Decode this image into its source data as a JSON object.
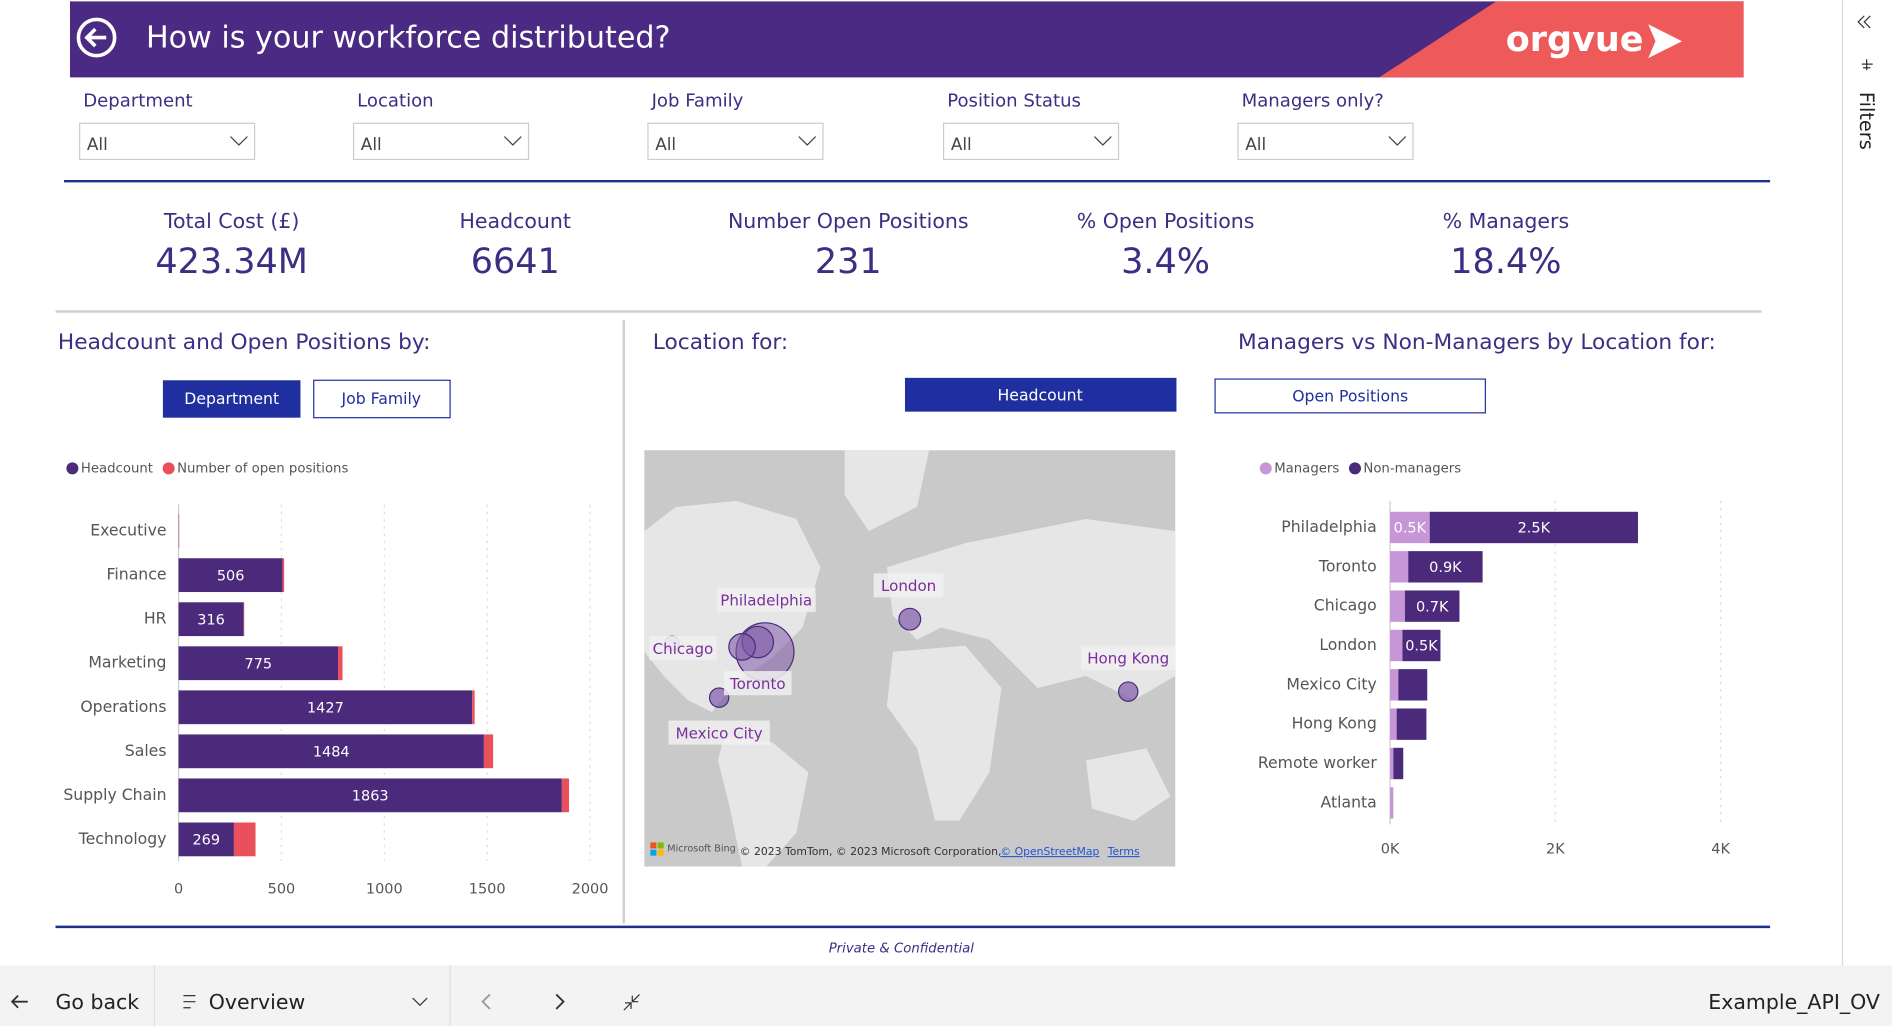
{
  "header": {
    "title": "How is your workforce distributed?",
    "logo": "orgvue"
  },
  "filters": [
    {
      "label": "Department",
      "value": "All"
    },
    {
      "label": "Location",
      "value": "All"
    },
    {
      "label": "Job Family",
      "value": "All"
    },
    {
      "label": "Position Status",
      "value": "All"
    },
    {
      "label": "Managers only?",
      "value": "All"
    }
  ],
  "kpis": [
    {
      "label": "Total Cost (£)",
      "value": "423.34M"
    },
    {
      "label": "Headcount",
      "value": "6641"
    },
    {
      "label": "Number Open Positions",
      "value": "231"
    },
    {
      "label": "% Open Positions",
      "value": "3.4%"
    },
    {
      "label": "% Managers",
      "value": "18.4%"
    }
  ],
  "left_panel": {
    "title": "Headcount and Open Positions by:",
    "buttons": [
      "Department",
      "Job Family"
    ]
  },
  "map_panel": {
    "title": "Location for:",
    "buttons": [
      "Headcount",
      "Open Positions"
    ],
    "places": [
      "Philadelphia",
      "London",
      "Chicago",
      "Toronto",
      "Hong Kong",
      "Mexico City"
    ],
    "attribution": {
      "brand": "Microsoft Bing",
      "text": "© 2023 TomTom, © 2023 Microsoft Corporation,",
      "osm": "© OpenStreetMap",
      "terms": "Terms"
    }
  },
  "right_panel": {
    "title": "Managers vs Non-Managers by Location for:"
  },
  "chart_data": [
    {
      "type": "bar",
      "orientation": "horizontal",
      "stacked": true,
      "legend": "top-left",
      "grid": true,
      "categories": [
        "Executive",
        "Finance",
        "HR",
        "Marketing",
        "Operations",
        "Sales",
        "Supply Chain",
        "Technology"
      ],
      "series": [
        {
          "name": "Headcount",
          "color": "#4b2a7b",
          "show_labels": true,
          "values": [
            1,
            506,
            316,
            775,
            1427,
            1484,
            1863,
            269
          ]
        },
        {
          "name": "Number of open positions",
          "color": "#e8505b",
          "values": [
            2,
            7,
            3,
            22,
            12,
            45,
            35,
            105
          ]
        }
      ],
      "xlim": [
        0,
        2000
      ],
      "xticks": [
        0,
        500,
        1000,
        1500,
        2000
      ]
    },
    {
      "type": "bar",
      "orientation": "horizontal",
      "stacked": true,
      "legend": "top-left",
      "grid": true,
      "categories": [
        "Philadelphia",
        "Toronto",
        "Chicago",
        "London",
        "Mexico City",
        "Hong Kong",
        "Remote worker",
        "Atlanta"
      ],
      "series": [
        {
          "name": "Managers",
          "color": "#c696d6",
          "values": [
            480,
            220,
            180,
            150,
            100,
            80,
            40,
            40
          ],
          "value_labels": [
            "0.5K",
            null,
            null,
            null,
            null,
            null,
            null,
            null
          ]
        },
        {
          "name": "Non-managers",
          "color": "#4b2a7b",
          "values": [
            2520,
            900,
            660,
            460,
            350,
            360,
            120,
            0
          ],
          "value_labels": [
            "2.5K",
            "0.9K",
            "0.7K",
            "0.5K",
            null,
            null,
            null,
            null
          ]
        }
      ],
      "xlim": [
        0,
        4000
      ],
      "xticks": [
        {
          "value": 0,
          "label": "0K"
        },
        {
          "value": 2000,
          "label": "2K"
        },
        {
          "value": 4000,
          "label": "4K"
        }
      ]
    }
  ],
  "footer": "Private & Confidential",
  "nav": {
    "back": "Go back",
    "page": "Overview",
    "file": "Example_API_OV"
  },
  "side": "Filters"
}
